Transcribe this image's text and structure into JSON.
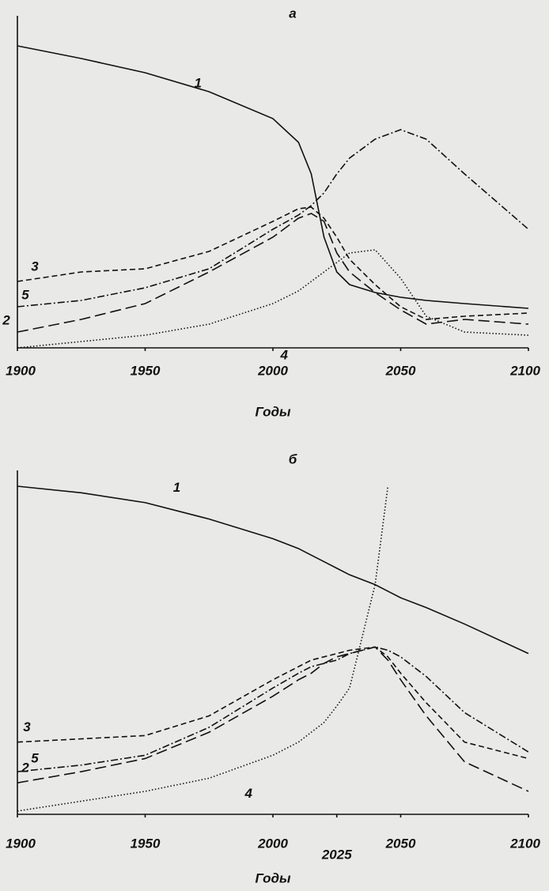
{
  "chart_data": [
    {
      "type": "line",
      "title": "а",
      "xlabel": "Годы",
      "x": [
        1900,
        1925,
        1950,
        1975,
        2000,
        2010,
        2015,
        2020,
        2025,
        2030,
        2040,
        2050,
        2060,
        2075,
        2100
      ],
      "xlim": [
        1900,
        2100
      ],
      "xticks": [
        1900,
        1950,
        2000,
        2050,
        2100
      ],
      "ylim": [
        0,
        100
      ],
      "series": [
        {
          "name": "1",
          "color": "#111111",
          "line_style": "solid",
          "values": [
            95.5,
            91.5,
            87,
            81,
            72.5,
            65,
            55,
            35,
            24,
            20,
            17.5,
            16,
            15,
            14,
            12.5
          ]
        },
        {
          "name": "2",
          "color": "#111111",
          "line_style": "long-dash",
          "values": [
            5,
            9,
            14,
            24,
            35,
            41,
            42.5,
            40,
            30,
            24,
            17.5,
            12,
            7.5,
            9,
            7.5
          ]
        },
        {
          "name": "3",
          "color": "#111111",
          "line_style": "dash",
          "values": [
            21,
            24,
            25,
            30.5,
            40,
            44,
            44.5,
            41,
            35,
            28,
            20,
            13,
            9,
            10,
            11
          ]
        },
        {
          "name": "4",
          "color": "#111111",
          "line_style": "dotted",
          "values": [
            0,
            2,
            4,
            7.5,
            14,
            18,
            21,
            24,
            27,
            30,
            31,
            22,
            10,
            5,
            4
          ]
        },
        {
          "name": "5",
          "color": "#111111",
          "line_style": "dash-dot",
          "values": [
            13,
            15,
            19,
            25,
            37.5,
            42,
            45,
            49,
            55,
            60,
            66,
            69,
            66,
            55,
            37.5
          ]
        }
      ]
    },
    {
      "type": "line",
      "title": "б",
      "xlabel": "Годы",
      "x": [
        1900,
        1925,
        1950,
        1975,
        2000,
        2010,
        2015,
        2020,
        2025,
        2030,
        2040,
        2045,
        2050,
        2060,
        2075,
        2100
      ],
      "xlim": [
        1900,
        2100
      ],
      "xticks": [
        1900,
        1950,
        2000,
        2025,
        2050,
        2100
      ],
      "ylim": [
        0,
        100
      ],
      "series": [
        {
          "name": "1",
          "color": "#111111",
          "line_style": "solid",
          "values": [
            100,
            98,
            95,
            90,
            84,
            81,
            79,
            77,
            75,
            73,
            70,
            68,
            66,
            63,
            58,
            49
          ]
        },
        {
          "name": "2",
          "color": "#111111",
          "line_style": "long-dash",
          "values": [
            9.6,
            13,
            17,
            25,
            36,
            41,
            43,
            46,
            48,
            49,
            51,
            47,
            41,
            30,
            16,
            7
          ]
        },
        {
          "name": "3",
          "color": "#111111",
          "line_style": "dash",
          "values": [
            22,
            23,
            24,
            30,
            41,
            45,
            47,
            48,
            49,
            50,
            51,
            48,
            43,
            34,
            22,
            17
          ]
        },
        {
          "name": "4",
          "color": "#111111",
          "line_style": "dotted",
          "values": [
            1,
            4,
            7,
            11,
            18,
            22,
            25,
            28,
            33,
            38.5,
            70,
            100,
            null,
            null,
            null,
            null
          ]
        },
        {
          "name": "5",
          "color": "#111111",
          "line_style": "dash-dot",
          "values": [
            13,
            15,
            18,
            26.5,
            38.5,
            43,
            45,
            46,
            47,
            49,
            51,
            50,
            48,
            42,
            31,
            19
          ]
        }
      ]
    }
  ]
}
